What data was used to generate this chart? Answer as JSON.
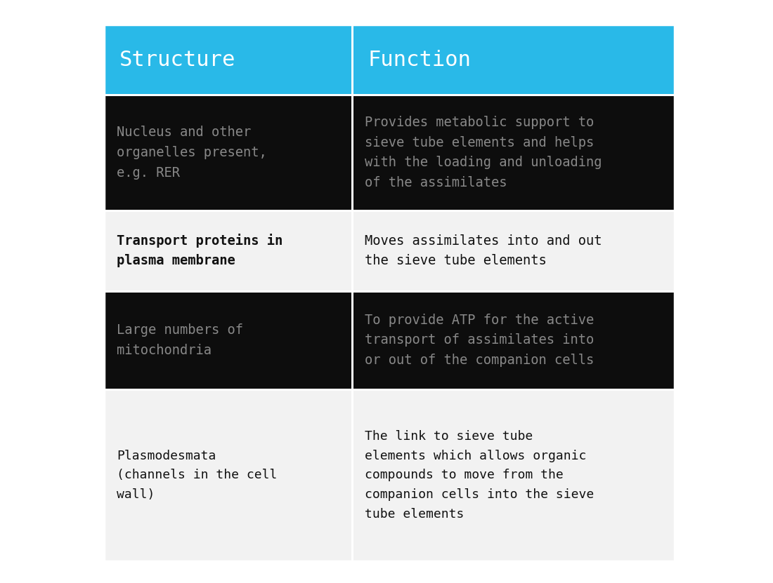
{
  "header": [
    "Structure",
    "Function"
  ],
  "header_bg": "#29b9e8",
  "header_text_color": "#ffffff",
  "rows": [
    {
      "structure": "Nucleus and other\norganelles present,\ne.g. RER",
      "function": "Provides metabolic support to\nsieve tube elements and helps\nwith the loading and unloading\nof the assimilates",
      "bg": "#0d0d0d",
      "text_color": "#888888",
      "bold": false
    },
    {
      "structure": "Transport proteins in\nplasma membrane",
      "function": "Moves assimilates into and out\nthe sieve tube elements",
      "bg": "#f2f2f2",
      "text_color": "#111111",
      "bold": true
    },
    {
      "structure": "Large numbers of\nmitochondria",
      "function": "To provide ATP for the active\ntransport of assimilates into\nor out of the companion cells",
      "bg": "#0d0d0d",
      "text_color": "#888888",
      "bold": false
    },
    {
      "structure": "Plasmodesmata\n(channels in the cell\nwall)",
      "function": "The link to sieve tube\nelements which allows organic\ncompounds to move from the\ncompanion cells into the sieve\ntube elements",
      "bg": "#f2f2f2",
      "text_color": "#111111",
      "bold": false
    }
  ],
  "cyan": "#29b9e8",
  "fig_bg": "#ffffff",
  "outer_bg": "#0d0d0d"
}
